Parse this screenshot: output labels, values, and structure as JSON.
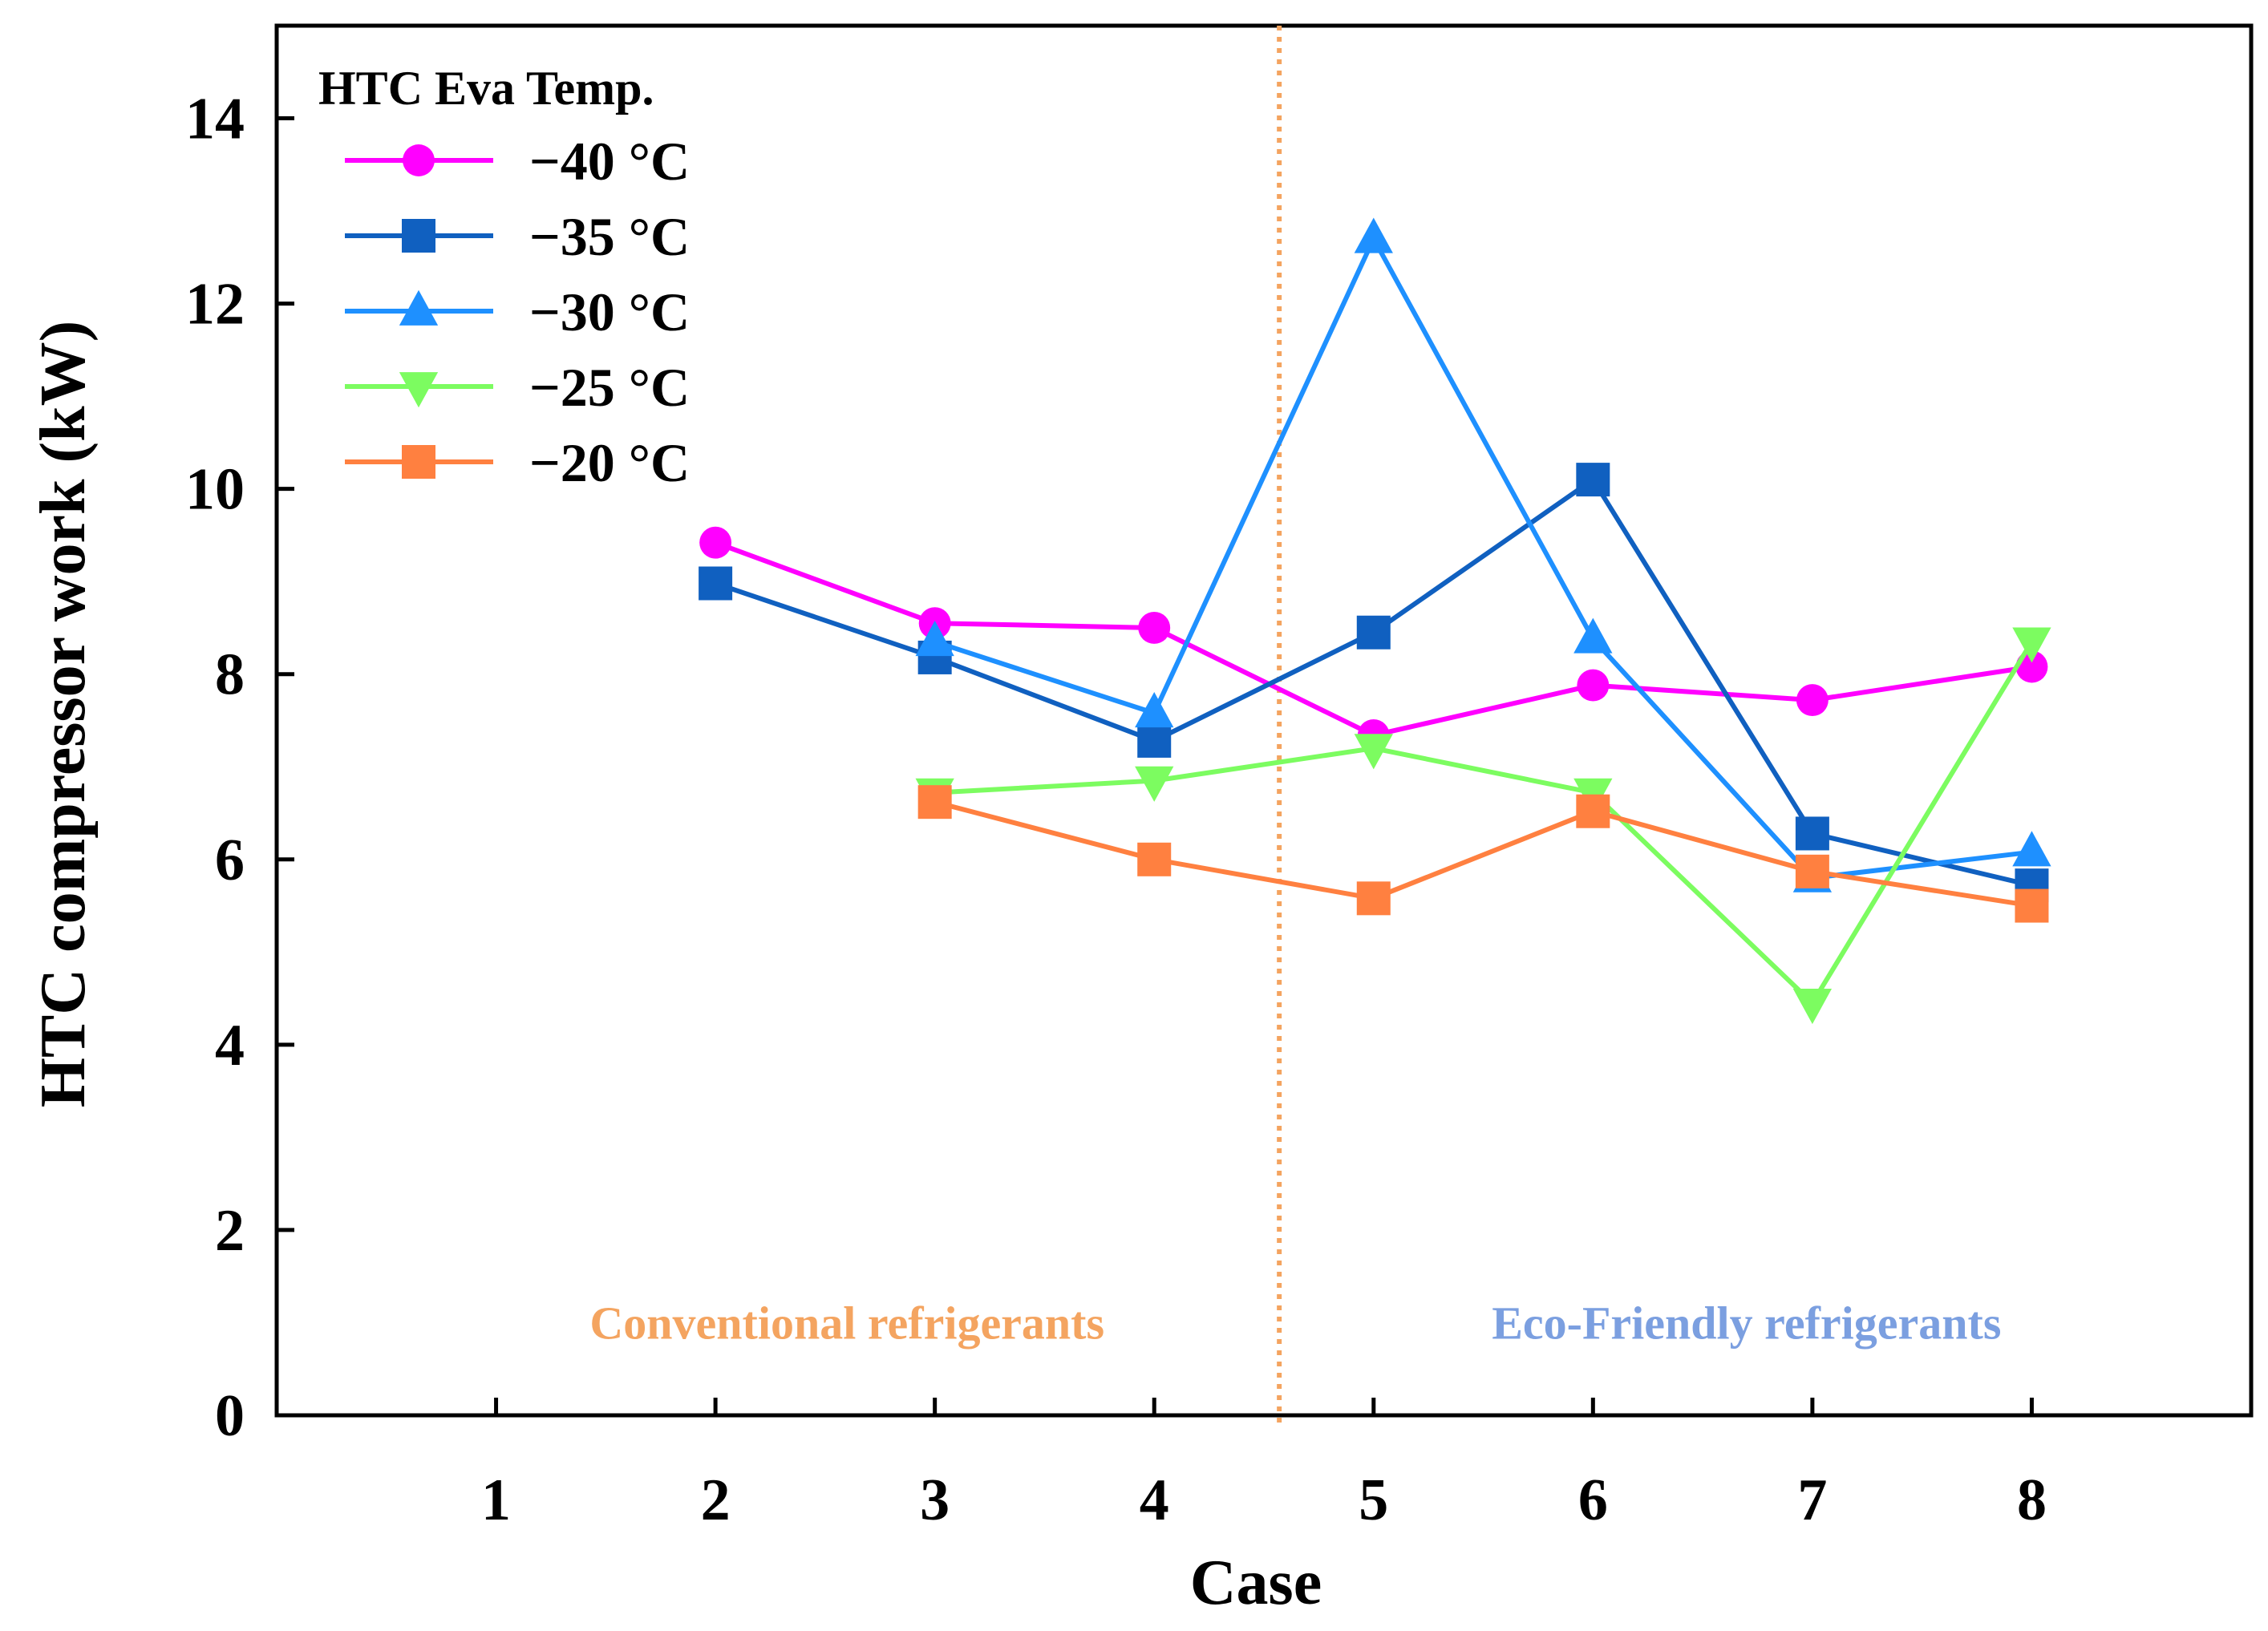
{
  "chart_data": {
    "type": "line",
    "title": "",
    "xlabel": "Case",
    "ylabel": "HTC compressor work (kW)",
    "xlim": [
      0,
      9
    ],
    "ylim": [
      0,
      15
    ],
    "xticks": [
      1,
      2,
      3,
      4,
      5,
      6,
      7,
      8
    ],
    "yticks": [
      0,
      2,
      4,
      6,
      8,
      10,
      12,
      14
    ],
    "legend": {
      "title": "HTC Eva Temp.",
      "position": "top-left"
    },
    "series": [
      {
        "name": "−40 °C",
        "color": "#ff00ff",
        "marker": "circle",
        "x": [
          2,
          3,
          4,
          5,
          6,
          7,
          8
        ],
        "y": [
          9.42,
          8.55,
          8.5,
          7.34,
          7.88,
          7.72,
          8.08
        ]
      },
      {
        "name": "−35 °C",
        "color": "#1060c0",
        "marker": "square",
        "x": [
          2,
          3,
          4,
          5,
          6,
          7,
          8
        ],
        "y": [
          8.98,
          8.18,
          7.28,
          8.45,
          10.1,
          6.28,
          5.72
        ]
      },
      {
        "name": "−30 °C",
        "color": "#1e90ff",
        "marker": "triangle-up",
        "x": [
          3,
          4,
          5,
          6,
          7,
          8
        ],
        "y": [
          8.35,
          7.58,
          12.7,
          8.38,
          5.8,
          6.08
        ]
      },
      {
        "name": "−25 °C",
        "color": "#7cfc60",
        "marker": "triangle-down",
        "x": [
          3,
          4,
          5,
          6,
          7,
          8
        ],
        "y": [
          6.72,
          6.85,
          7.2,
          6.72,
          4.45,
          8.35
        ]
      },
      {
        "name": "−20 °C",
        "color": "#ff8040",
        "marker": "square",
        "x": [
          3,
          4,
          5,
          6,
          7,
          8
        ],
        "y": [
          6.62,
          6.0,
          5.58,
          6.52,
          5.87,
          5.5
        ]
      }
    ],
    "divider": {
      "x": 4.57,
      "color": "#f4a460",
      "style": "dotted"
    },
    "annotations": [
      {
        "text": "Conventional refrigerants",
        "x": 2.6,
        "y": 1.0,
        "color": "#f4a460"
      },
      {
        "text": "Eco-Friendly refrigerants",
        "x": 6.7,
        "y": 1.0,
        "color": "#7b9fe0"
      }
    ]
  }
}
